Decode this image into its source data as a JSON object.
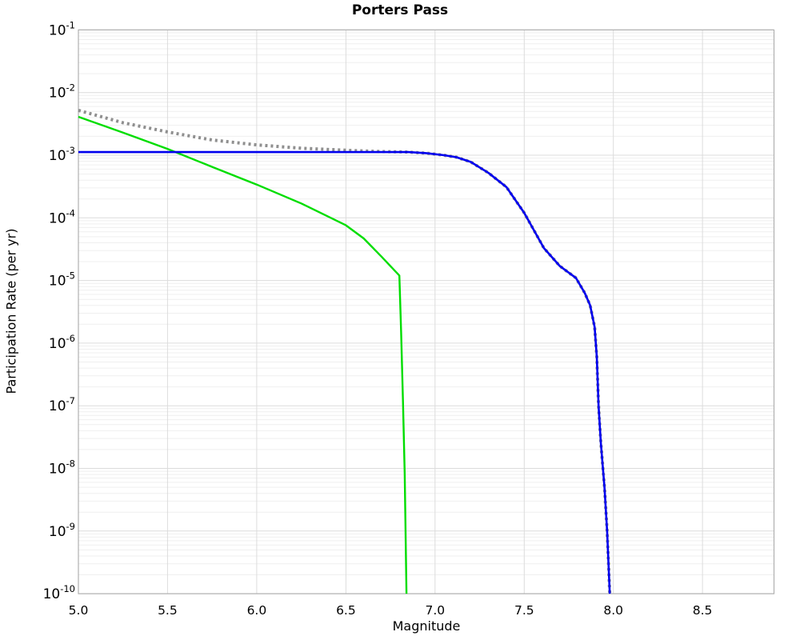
{
  "chart_data": {
    "type": "line",
    "title": "Porters Pass",
    "xlabel": "Magnitude",
    "ylabel": "Participation Rate (per yr)",
    "x_scale": "linear",
    "y_scale": "log",
    "xlim": [
      5.0,
      8.9
    ],
    "ylim": [
      1e-10,
      0.1
    ],
    "grid": true,
    "legend": "none",
    "x_ticks": [
      "5.0",
      "5.5",
      "6.0",
      "6.5",
      "7.0",
      "7.5",
      "8.0",
      "8.5"
    ],
    "x_tick_values": [
      5.0,
      5.5,
      6.0,
      6.5,
      7.0,
      7.5,
      8.0,
      8.5
    ],
    "y_tick_base": "10",
    "y_tick_exponents": [
      -1,
      -2,
      -3,
      -4,
      -5,
      -6,
      -7,
      -8,
      -9,
      -10
    ],
    "colors": {
      "green_solid": "#00dd00",
      "blue_solid": "#0000ee",
      "gray_dotted": "#8f8f8f",
      "grid_major": "#dcdcdc",
      "grid_minor": "#efefef",
      "frame": "#b0b0b0",
      "text": "#000000"
    },
    "series": [
      {
        "name": "green-solid",
        "style": "solid",
        "color_key": "green_solid",
        "width": 2.4,
        "points": [
          [
            5.0,
            0.0041
          ],
          [
            5.25,
            0.0023
          ],
          [
            5.5,
            0.00126
          ],
          [
            5.75,
            0.00065
          ],
          [
            6.0,
            0.00034
          ],
          [
            6.25,
            0.00017
          ],
          [
            6.5,
            7.6e-05
          ],
          [
            6.6,
            4.7e-05
          ],
          [
            6.7,
            2.4e-05
          ],
          [
            6.8,
            1.2e-05
          ],
          [
            6.81,
            1.5e-06
          ],
          [
            6.82,
            1.2e-07
          ],
          [
            6.83,
            8e-09
          ],
          [
            6.84,
            1e-10
          ]
        ]
      },
      {
        "name": "gray-dotted",
        "style": "dotted",
        "color_key": "gray_dotted",
        "width": 4.0,
        "points": [
          [
            5.0,
            0.0052
          ],
          [
            5.25,
            0.0033
          ],
          [
            5.5,
            0.00235
          ],
          [
            5.75,
            0.00175
          ],
          [
            6.0,
            0.00146
          ],
          [
            6.25,
            0.00129
          ],
          [
            6.5,
            0.0012
          ],
          [
            6.6,
            0.00117
          ],
          [
            6.7,
            0.00114
          ],
          [
            6.8,
            0.00113
          ],
          [
            6.85,
            0.00112
          ],
          [
            6.95,
            0.00108
          ],
          [
            7.05,
            0.001
          ],
          [
            7.12,
            0.00093
          ],
          [
            7.2,
            0.00078
          ],
          [
            7.3,
            0.00052
          ],
          [
            7.4,
            0.00031
          ],
          [
            7.5,
            0.00012
          ],
          [
            7.61,
            3.3e-05
          ],
          [
            7.7,
            1.7e-05
          ],
          [
            7.79,
            1.1e-05
          ],
          [
            7.84,
            6.3e-06
          ],
          [
            7.87,
            4e-06
          ],
          [
            7.895,
            1.8e-06
          ],
          [
            7.907,
            6e-07
          ],
          [
            7.917,
            1e-07
          ],
          [
            7.93,
            2.5e-08
          ],
          [
            7.95,
            5e-09
          ],
          [
            7.965,
            1e-09
          ],
          [
            7.98,
            1e-10
          ]
        ]
      },
      {
        "name": "blue-solid",
        "style": "solid",
        "color_key": "blue_solid",
        "width": 2.6,
        "points": [
          [
            5.0,
            0.00112
          ],
          [
            6.0,
            0.00112
          ],
          [
            6.5,
            0.00112
          ],
          [
            6.85,
            0.00112
          ],
          [
            6.95,
            0.00108
          ],
          [
            7.05,
            0.001
          ],
          [
            7.12,
            0.00093
          ],
          [
            7.2,
            0.00078
          ],
          [
            7.3,
            0.00052
          ],
          [
            7.4,
            0.00031
          ],
          [
            7.5,
            0.00012
          ],
          [
            7.61,
            3.3e-05
          ],
          [
            7.7,
            1.7e-05
          ],
          [
            7.79,
            1.1e-05
          ],
          [
            7.84,
            6.3e-06
          ],
          [
            7.87,
            4e-06
          ],
          [
            7.895,
            1.8e-06
          ],
          [
            7.907,
            6e-07
          ],
          [
            7.917,
            1e-07
          ],
          [
            7.93,
            2.5e-08
          ],
          [
            7.95,
            5e-09
          ],
          [
            7.965,
            1e-09
          ],
          [
            7.98,
            1e-10
          ]
        ]
      }
    ]
  }
}
